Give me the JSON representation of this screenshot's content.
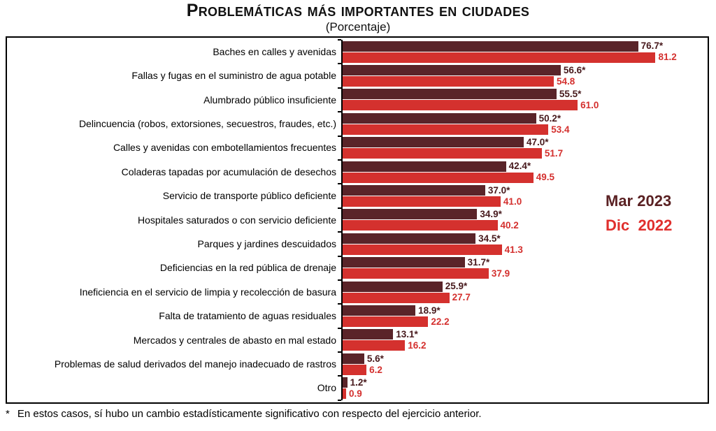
{
  "header": {
    "title": "Problemáticas más importantes en ciudades",
    "subtitle": "(Porcentaje)"
  },
  "legend": {
    "series1": "Mar 2023",
    "series2": "Dic  2022"
  },
  "footnote": {
    "marker": "*",
    "text": "En estos casos, sí hubo un cambio estadísticamente significativo con respecto del ejercicio anterior."
  },
  "colors": {
    "mar_2023_bar": "#5a2429",
    "dic_2022_bar": "#d4312e",
    "mar_2023_value_label": "#47191c",
    "dic_2022_value_label": "#d4302e",
    "legend_mar": "#5a2123",
    "legend_dic": "#e02f2d",
    "axis": "#000000"
  },
  "chart_data": {
    "type": "bar",
    "orientation": "horizontal",
    "title": "Problemáticas más importantes en ciudades",
    "subtitle": "(Porcentaje)",
    "grid": false,
    "legend_position": "right-middle",
    "xlim": [
      0,
      94
    ],
    "significance_marker": "*",
    "categories": [
      "Baches en calles y avenidas",
      "Fallas y fugas en el suministro de agua potable",
      "Alumbrado público insuficiente",
      "Delincuencia (robos, extorsiones, secuestros, fraudes, etc.)",
      "Calles y avenidas con embotellamientos frecuentes",
      "Coladeras tapadas por acumulación de desechos",
      "Servicio de transporte público deficiente",
      "Hospitales saturados o con servicio deficiente",
      "Parques y jardines descuidados",
      "Deficiencias en la red pública de drenaje",
      "Ineficiencia en el servicio de limpia y recolección de basura",
      "Falta de tratamiento de aguas residuales",
      "Mercados y centrales de abasto en mal estado",
      "Problemas de salud derivados del manejo inadecuado de rastros",
      "Otro"
    ],
    "series": [
      {
        "name": "Mar 2023",
        "color": "#5a2429",
        "values": [
          76.7,
          56.6,
          55.5,
          50.2,
          47.0,
          42.4,
          37.0,
          34.9,
          34.5,
          31.7,
          25.9,
          18.9,
          13.1,
          5.6,
          1.2
        ],
        "labels": [
          "76.7*",
          "56.6*",
          "55.5*",
          "50.2*",
          "47.0*",
          "42.4*",
          "37.0*",
          "34.9*",
          "34.5*",
          "31.7*",
          "25.9*",
          "18.9*",
          "13.1*",
          "5.6*",
          "1.2*"
        ]
      },
      {
        "name": "Dic 2022",
        "color": "#d4312e",
        "values": [
          81.2,
          54.8,
          61.0,
          53.4,
          51.7,
          49.5,
          41.0,
          40.2,
          41.3,
          37.9,
          27.7,
          22.2,
          16.2,
          6.2,
          0.9
        ],
        "labels": [
          "81.2",
          "54.8",
          "61.0",
          "53.4",
          "51.7",
          "49.5",
          "41.0",
          "40.2",
          "41.3",
          "37.9",
          "27.7",
          "22.2",
          "16.2",
          "6.2",
          "0.9"
        ]
      }
    ]
  }
}
